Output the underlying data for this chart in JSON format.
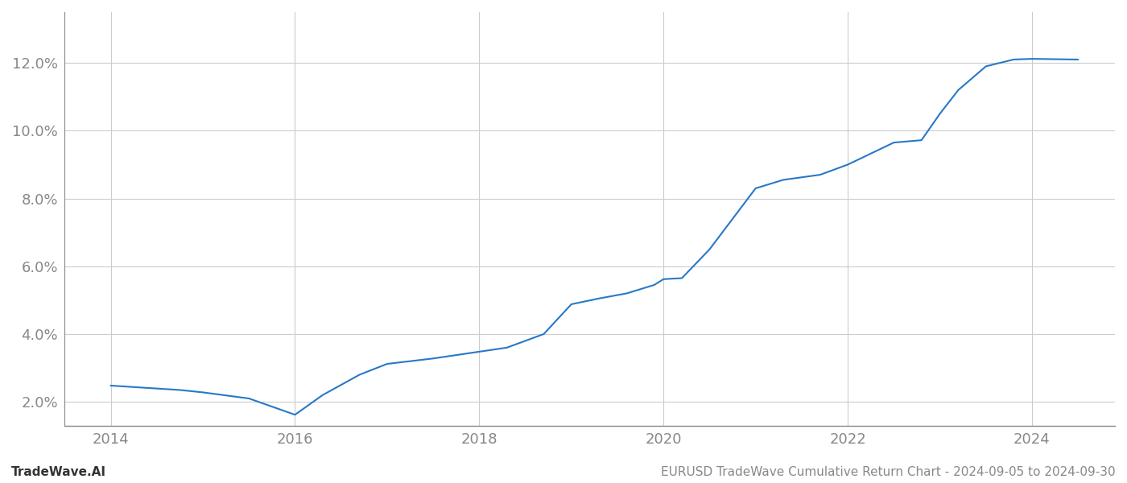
{
  "x_values": [
    2014.0,
    2014.75,
    2015.0,
    2015.5,
    2016.0,
    2016.3,
    2016.7,
    2017.0,
    2017.5,
    2018.0,
    2018.3,
    2018.7,
    2019.0,
    2019.3,
    2019.6,
    2019.9,
    2020.0,
    2020.2,
    2020.5,
    2021.0,
    2021.3,
    2021.7,
    2022.0,
    2022.5,
    2022.8,
    2023.0,
    2023.2,
    2023.5,
    2023.8,
    2024.0,
    2024.5
  ],
  "y_values": [
    2.48,
    2.35,
    2.28,
    2.1,
    1.62,
    2.2,
    2.8,
    3.12,
    3.28,
    3.48,
    3.6,
    4.0,
    4.88,
    5.05,
    5.2,
    5.45,
    5.62,
    5.65,
    6.5,
    8.3,
    8.55,
    8.7,
    9.0,
    9.65,
    9.72,
    10.5,
    11.2,
    11.9,
    12.1,
    12.12,
    12.1
  ],
  "line_color": "#2878c8",
  "line_width": 1.5,
  "background_color": "#ffffff",
  "grid_color": "#cccccc",
  "footer_left": "TradeWave.AI",
  "footer_right": "EURUSD TradeWave Cumulative Return Chart - 2024-09-05 to 2024-09-30",
  "xlim": [
    2013.5,
    2024.9
  ],
  "ylim": [
    1.3,
    13.5
  ],
  "yticks": [
    2.0,
    4.0,
    6.0,
    8.0,
    10.0,
    12.0
  ],
  "xticks": [
    2014,
    2016,
    2018,
    2020,
    2022,
    2024
  ],
  "tick_label_color": "#888888",
  "tick_fontsize": 13,
  "footer_fontsize": 11
}
